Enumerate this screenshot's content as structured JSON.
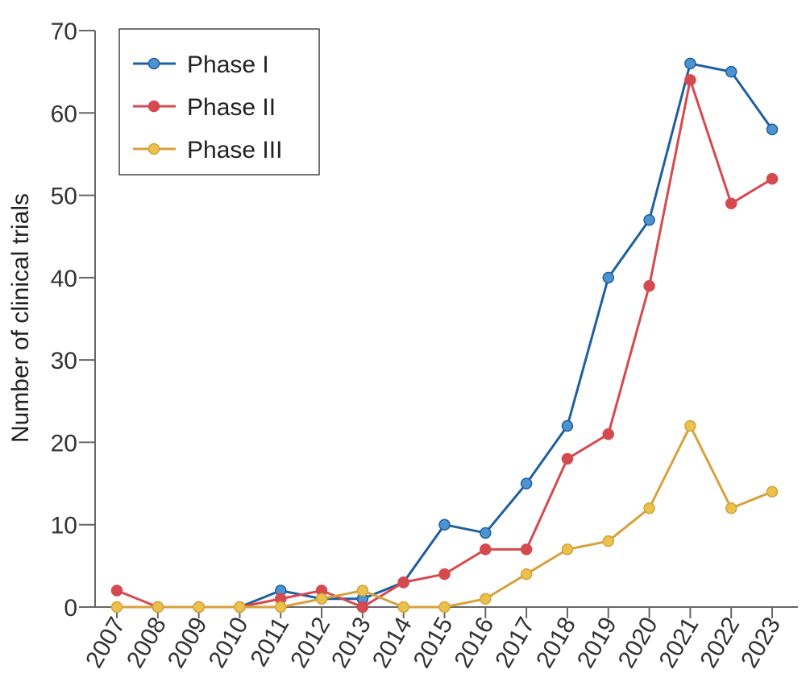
{
  "chart_data": {
    "type": "line",
    "title": "",
    "xlabel": "",
    "ylabel": "Number of clinical trials",
    "ylim": [
      0,
      70
    ],
    "yticks": [
      0,
      10,
      20,
      30,
      40,
      50,
      60,
      70
    ],
    "categories": [
      "2007",
      "2008",
      "2009",
      "2010",
      "2011",
      "2012",
      "2013",
      "2014",
      "2015",
      "2016",
      "2017",
      "2018",
      "2019",
      "2020",
      "2021",
      "2022",
      "2023"
    ],
    "legend_position": "top-left",
    "grid": false,
    "series": [
      {
        "name": "Phase I",
        "color": "#1f5fa0",
        "marker_color": "#4d93d0",
        "values": [
          null,
          0,
          0,
          0,
          2,
          1,
          1,
          3,
          10,
          9,
          15,
          22,
          40,
          47,
          66,
          65,
          58
        ]
      },
      {
        "name": "Phase II",
        "color": "#d54a4f",
        "marker_color": "#d54a4f",
        "values": [
          2,
          0,
          0,
          0,
          1,
          2,
          0,
          3,
          4,
          7,
          7,
          18,
          21,
          39,
          64,
          49,
          52
        ]
      },
      {
        "name": "Phase III",
        "color": "#d6a23a",
        "marker_color": "#e8c24a",
        "values": [
          0,
          0,
          0,
          0,
          0,
          1,
          2,
          0,
          0,
          1,
          4,
          7,
          8,
          12,
          22,
          12,
          14
        ]
      }
    ]
  }
}
